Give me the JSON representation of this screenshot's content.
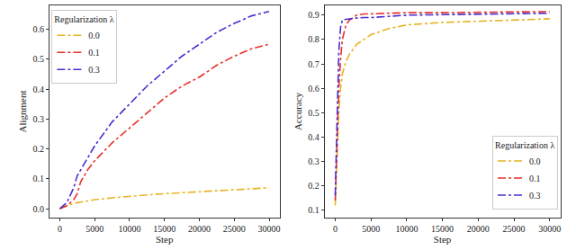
{
  "chart_data": [
    {
      "type": "line",
      "x_label": "Step",
      "y_label": "Alignment",
      "x": [
        0,
        1000,
        2000,
        2500,
        3000,
        4000,
        5000,
        7500,
        10000,
        12500,
        15000,
        17500,
        20000,
        22500,
        25000,
        27500,
        30000
      ],
      "series": [
        {
          "name": "0.0",
          "color": "#e6b422",
          "line_style": "dashdot",
          "values": [
            0,
            0.01,
            0.018,
            0.02,
            0.022,
            0.026,
            0.03,
            0.036,
            0.042,
            0.046,
            0.05,
            0.054,
            0.057,
            0.06,
            0.063,
            0.067,
            0.07
          ]
        },
        {
          "name": "0.1",
          "color": "#e8312a",
          "line_style": "dashdot",
          "values": [
            0,
            0.01,
            0.03,
            0.05,
            0.09,
            0.13,
            0.16,
            0.22,
            0.27,
            0.32,
            0.37,
            0.41,
            0.44,
            0.48,
            0.51,
            0.535,
            0.55
          ]
        },
        {
          "name": "0.3",
          "color": "#4a2bd1",
          "line_style": "dashdot",
          "values": [
            0,
            0.02,
            0.07,
            0.11,
            0.13,
            0.17,
            0.21,
            0.29,
            0.35,
            0.41,
            0.46,
            0.51,
            0.55,
            0.59,
            0.62,
            0.645,
            0.66
          ]
        }
      ],
      "legend": "upper left",
      "legend_title": "Regularization λ",
      "xlim": [
        -1500,
        31500
      ],
      "xticks": [
        0,
        5000,
        10000,
        15000,
        20000,
        25000,
        30000
      ],
      "ylim": [
        -0.03,
        0.68
      ],
      "yticks": [
        {
          "value": 0,
          "label": "0.0"
        },
        0.1,
        0.2,
        0.3,
        0.4,
        0.5,
        0.6
      ],
      "grid": false
    },
    {
      "type": "line",
      "x_label": "Step",
      "y_label": "Accuracy",
      "x": [
        0,
        250,
        500,
        750,
        1000,
        1500,
        2000,
        2500,
        3000,
        4000,
        5000,
        7500,
        10000,
        15000,
        20000,
        25000,
        30000
      ],
      "series": [
        {
          "name": "0.0",
          "color": "#e6b422",
          "line_style": "dashdot",
          "values": [
            0.12,
            0.3,
            0.5,
            0.6,
            0.66,
            0.71,
            0.74,
            0.76,
            0.78,
            0.8,
            0.82,
            0.845,
            0.86,
            0.87,
            0.875,
            0.88,
            0.885
          ]
        },
        {
          "name": "0.1",
          "color": "#e8312a",
          "line_style": "dashdot",
          "values": [
            0.14,
            0.4,
            0.6,
            0.72,
            0.8,
            0.86,
            0.88,
            0.89,
            0.9,
            0.905,
            0.905,
            0.908,
            0.91,
            0.91,
            0.912,
            0.914,
            0.915
          ]
        },
        {
          "name": "0.3",
          "color": "#4a2bd1",
          "line_style": "dashdot",
          "values": [
            0.16,
            0.5,
            0.75,
            0.85,
            0.88,
            0.883,
            0.885,
            0.887,
            0.888,
            0.89,
            0.89,
            0.895,
            0.9,
            0.902,
            0.905,
            0.906,
            0.908
          ]
        }
      ],
      "legend": "lower right",
      "legend_title": "Regularization λ",
      "xlim": [
        -1500,
        31500
      ],
      "xticks": [
        0,
        5000,
        10000,
        15000,
        20000,
        25000,
        30000
      ],
      "ylim": [
        0.07,
        0.94
      ],
      "yticks": [
        0.1,
        0.2,
        0.3,
        0.4,
        0.5,
        0.6,
        0.7,
        0.8,
        0.9
      ],
      "grid": false
    }
  ]
}
